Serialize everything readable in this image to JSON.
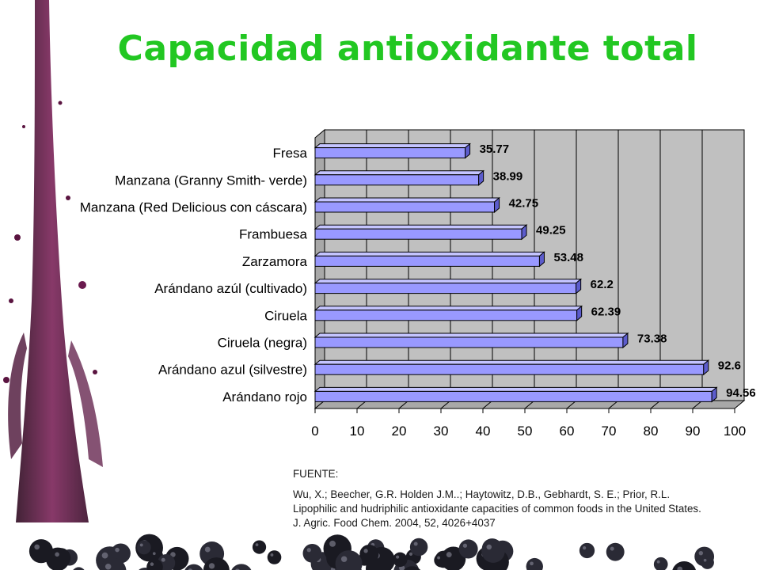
{
  "title": "Capacidad antioxidante total",
  "chart_data": {
    "type": "bar",
    "orientation": "horizontal",
    "categories": [
      "Fresa",
      "Manzana (Granny Smith- verde)",
      "Manzana (Red Delicious con cáscara)",
      "Frambuesa",
      "Zarzamora",
      "Arándano azúl (cultivado)",
      "Ciruela",
      "Ciruela (negra)",
      "Arándano azul (silvestre)",
      "Arándano rojo"
    ],
    "values": [
      35.77,
      38.99,
      42.75,
      49.25,
      53.48,
      62.2,
      62.39,
      73.38,
      92.6,
      94.56
    ],
    "value_labels": [
      "35.77",
      "38.99",
      "42.75",
      "49.25",
      "53.48",
      "62.2",
      "62.39",
      "73.38",
      "92.6",
      "94.56"
    ],
    "x_ticks": [
      "0",
      "10",
      "20",
      "30",
      "40",
      "50",
      "60",
      "70",
      "80",
      "90",
      "100"
    ],
    "xlim": [
      0,
      100
    ],
    "grid": true,
    "bar_color": "#9999ff",
    "bar_side_color": "#5c5ccc",
    "bar_top_color": "#c4c4ff",
    "wall_color": "#c0c0c0"
  },
  "source": {
    "heading": "FUENTE:",
    "text": "Wu, X.; Beecher, G.R. Holden J.M..; Haytowitz, D.B., Gebhardt, S. E.; Prior, R.L. Lipophilic and hudriphilic antioxidante capacities of common foods in the United States. J. Agric. Food Chem. 2004, 52, 4026+4037"
  },
  "colors": {
    "title": "#22c722",
    "splash": "#5a1440"
  }
}
